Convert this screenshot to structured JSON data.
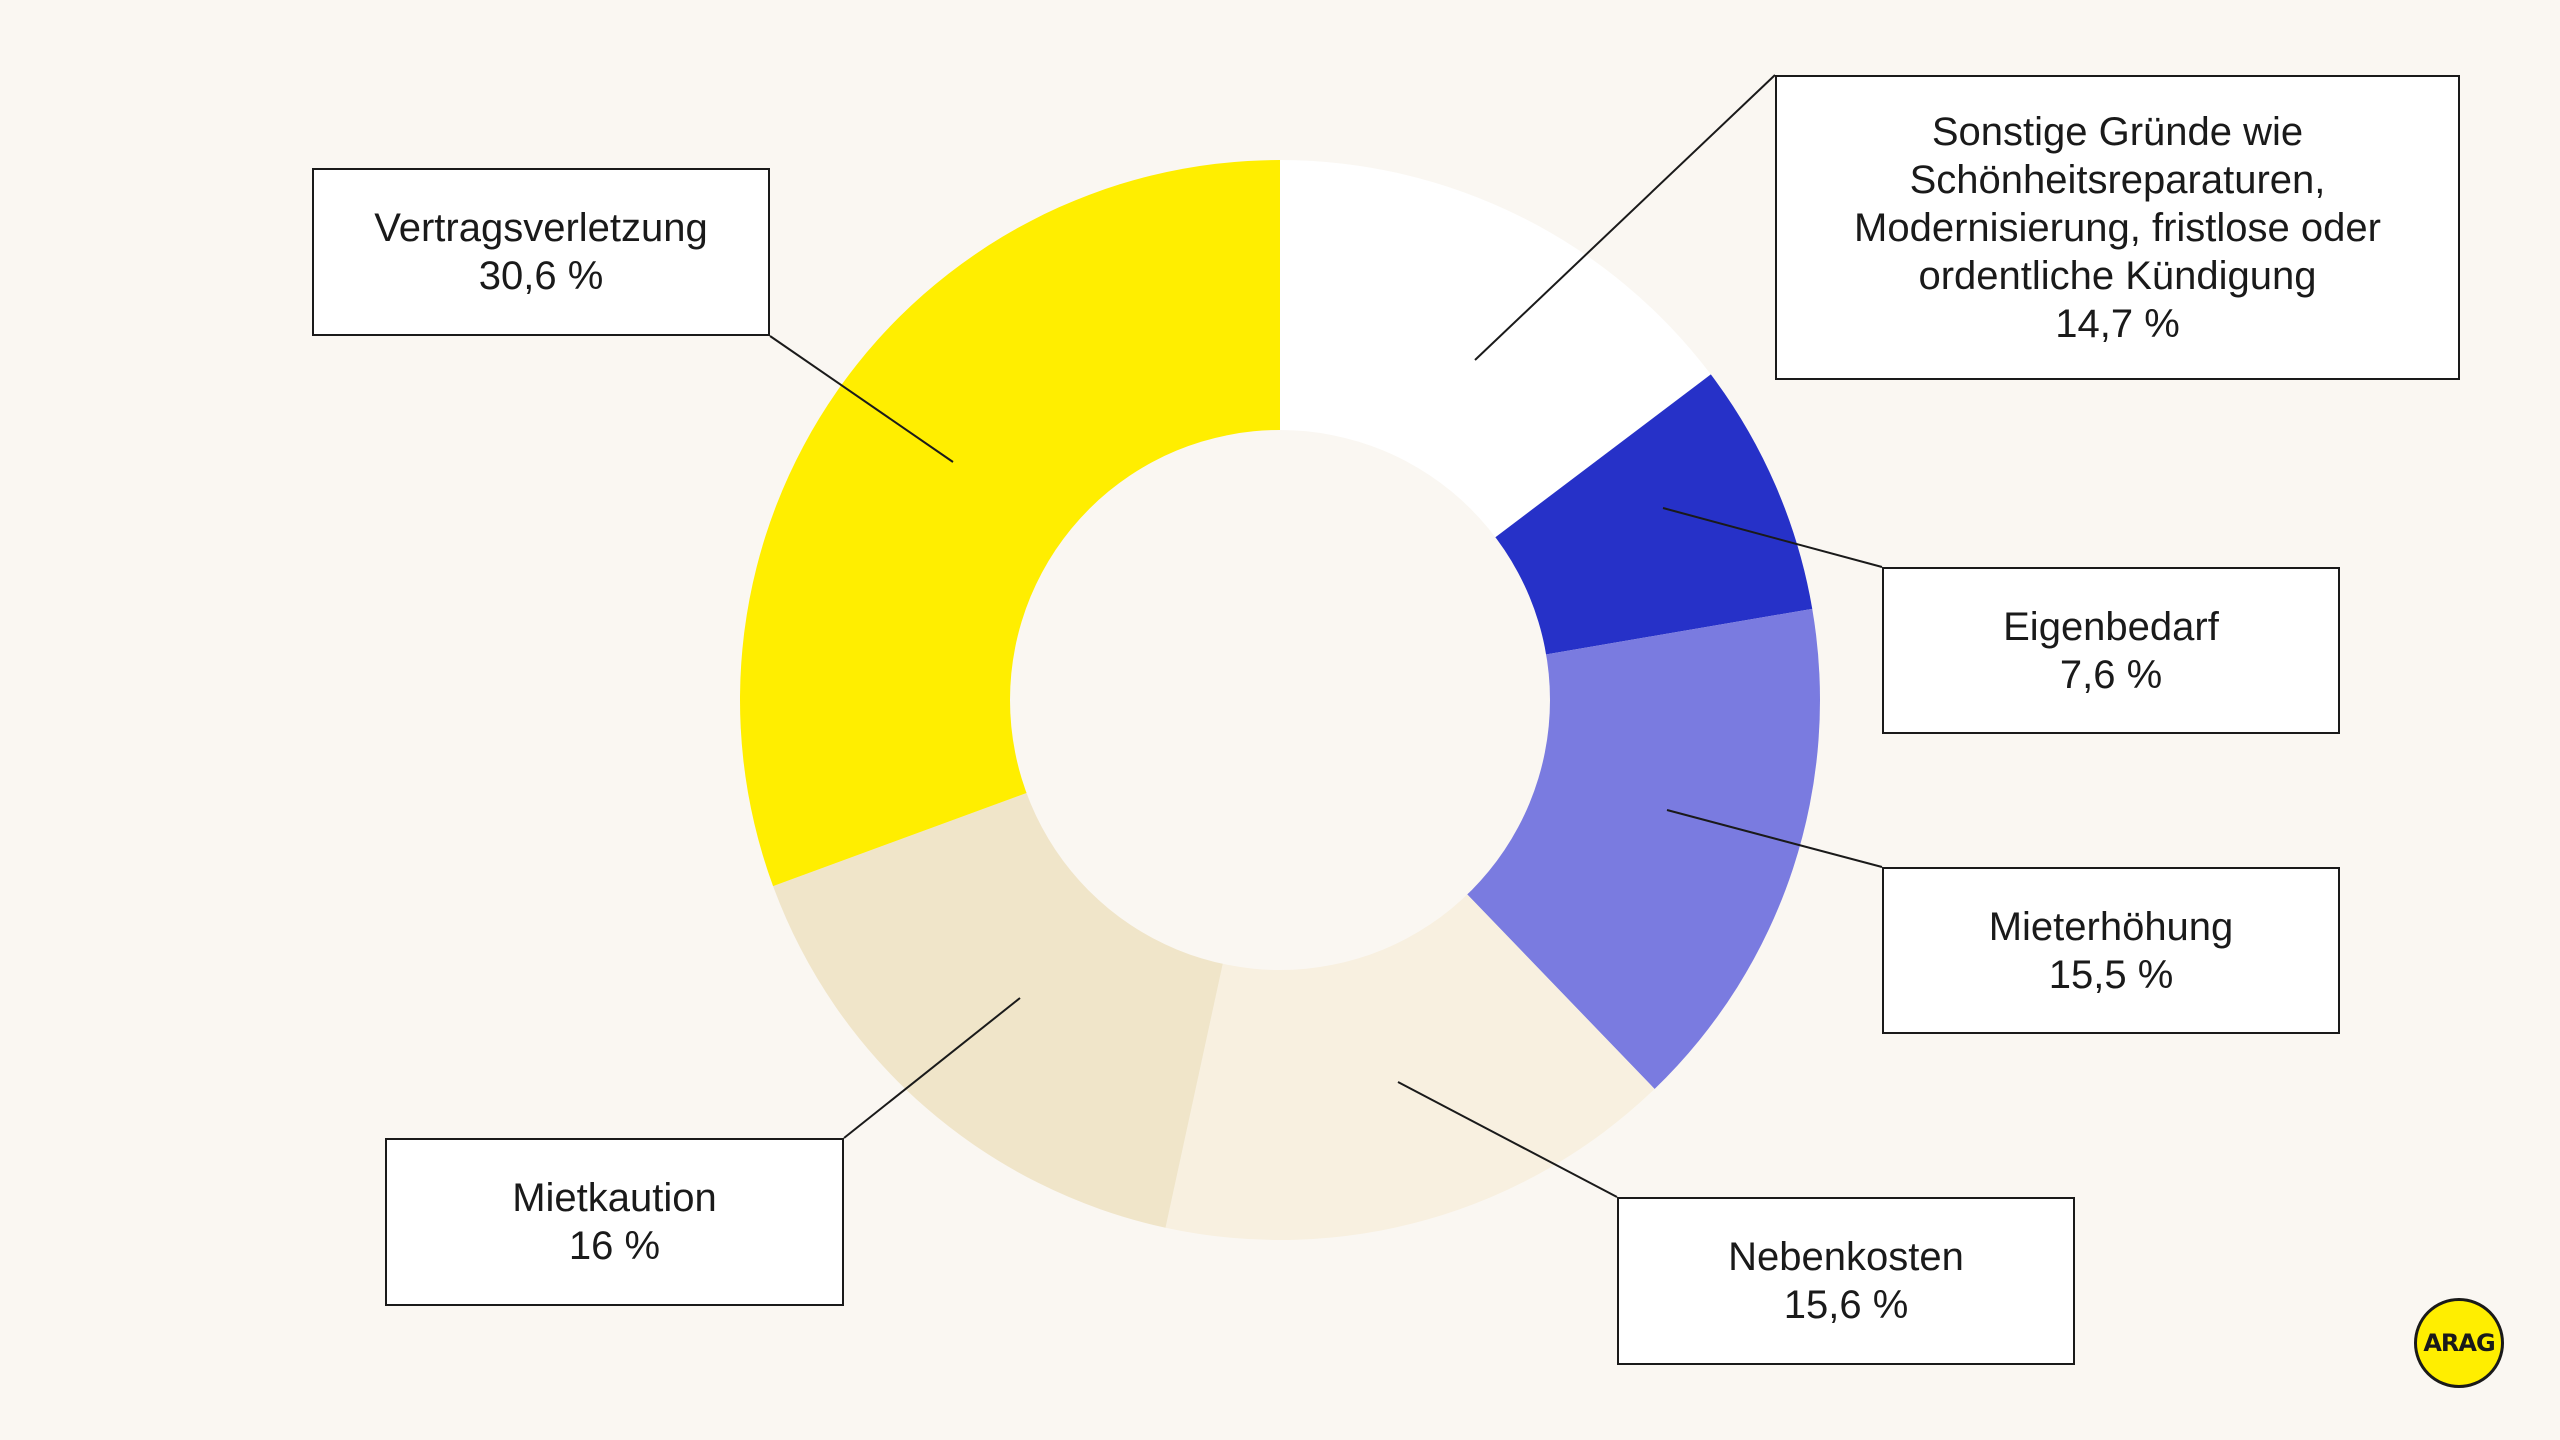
{
  "chart_data": {
    "type": "pie",
    "style": "donut",
    "title": "",
    "slices": [
      {
        "key": "sonstige",
        "label_lines": [
          "Sonstige Gründe wie",
          "Schönheitsreparaturen,",
          "Modernisierung, fristlose oder",
          "ordentliche Kündigung"
        ],
        "value": 14.7,
        "value_text": "14,7 %",
        "color": "#ffffff"
      },
      {
        "key": "eigenbedarf",
        "label_lines": [
          "Eigenbedarf"
        ],
        "value": 7.6,
        "value_text": "7,6 %",
        "color": "#2631c8"
      },
      {
        "key": "mieterhoehung",
        "label_lines": [
          "Mieterhöhung"
        ],
        "value": 15.5,
        "value_text": "15,5 %",
        "color": "#7a7be0"
      },
      {
        "key": "nebenkosten",
        "label_lines": [
          "Nebenkosten"
        ],
        "value": 15.6,
        "value_text": "15,6 %",
        "color": "#f8f0e0"
      },
      {
        "key": "mietkaution",
        "label_lines": [
          "Mietkaution"
        ],
        "value": 16,
        "value_text": "16 %",
        "color": "#f0e5c9"
      },
      {
        "key": "vertragsverletzung",
        "label_lines": [
          "Vertragsverletzung"
        ],
        "value": 30.6,
        "value_text": "30,6 %",
        "color": "#ffee00"
      }
    ]
  },
  "logo": {
    "text": "ARAG"
  },
  "colors": {
    "background": "#faf7f2",
    "border": "#1a1a1a"
  }
}
